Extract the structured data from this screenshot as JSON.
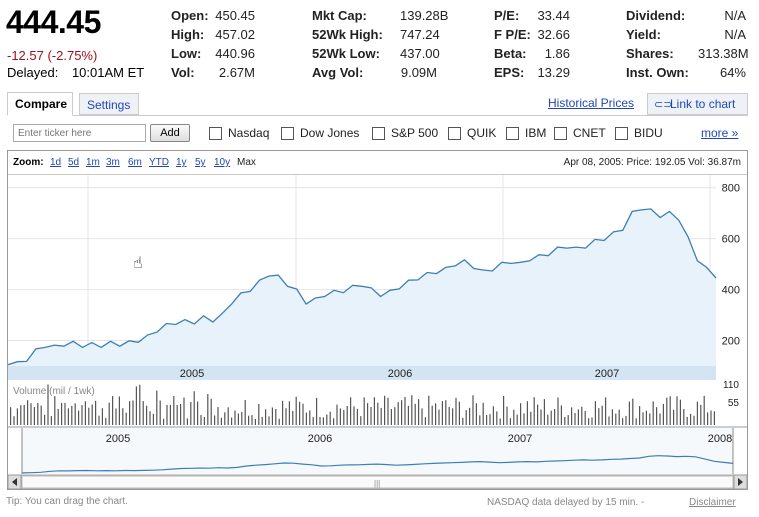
{
  "quote": {
    "price": "444.45",
    "change": "-12.57 (-2.75%)",
    "delayed_label": "Delayed:",
    "delayed_time": "10:01AM ET"
  },
  "stats": {
    "col1": [
      {
        "k": "Open:",
        "v": "450.45"
      },
      {
        "k": "High:",
        "v": "457.02"
      },
      {
        "k": "Low:",
        "v": "440.96"
      },
      {
        "k": "Vol:",
        "v": "2.67M"
      }
    ],
    "col2": [
      {
        "k": "Mkt Cap:",
        "v": "139.28B"
      },
      {
        "k": "52Wk High:",
        "v": "747.24"
      },
      {
        "k": "52Wk Low:",
        "v": "437.00"
      },
      {
        "k": "Avg Vol:",
        "v": "9.09M"
      }
    ],
    "col3": [
      {
        "k": "P/E:",
        "v": "33.44"
      },
      {
        "k": "F P/E:",
        "v": "32.66"
      },
      {
        "k": "Beta:",
        "v": "1.86"
      },
      {
        "k": "EPS:",
        "v": "13.29"
      }
    ],
    "col4": [
      {
        "k": "Dividend:",
        "v": "N/A"
      },
      {
        "k": "Yield:",
        "v": "N/A"
      },
      {
        "k": "Shares:",
        "v": "313.38M"
      },
      {
        "k": "Inst. Own:",
        "v": "64%"
      }
    ]
  },
  "tabs": {
    "compare": "Compare",
    "settings": "Settings",
    "historical": "Historical Prices",
    "link_chart": "Link to chart"
  },
  "compare": {
    "placeholder": "Enter ticker here",
    "add_label": "Add",
    "tickers": [
      "Nasdaq",
      "Dow Jones",
      "S&P 500",
      "QUIK",
      "IBM",
      "CNET",
      "BIDU"
    ],
    "more": "more »"
  },
  "zoom": {
    "label": "Zoom:",
    "options": [
      "1d",
      "5d",
      "1m",
      "3m",
      "6m",
      "YTD",
      "1y",
      "5y",
      "10y"
    ],
    "max": "Max",
    "info": "Apr 08, 2005: Price: 192.05 Vol: 36.87m"
  },
  "chart_data": {
    "type": "area",
    "title": "",
    "y_ticks": [
      "800",
      "600",
      "400",
      "200"
    ],
    "ylim": [
      100,
      850
    ],
    "year_labels": [
      "2005",
      "2006",
      "2007"
    ],
    "volume_label": "Volume (mil / 1wk)",
    "volume_ticks": [
      "110",
      "55"
    ],
    "overview_years": [
      "2005",
      "2006",
      "2007",
      "2008"
    ],
    "series": [
      {
        "values": [
          105,
          110,
          125,
          160,
          180,
          175,
          185,
          190,
          180,
          185,
          180,
          190,
          185,
          192,
          200,
          215,
          240,
          260,
          270,
          275,
          272,
          290,
          280,
          300,
          350,
          380,
          400,
          430,
          460,
          450,
          420,
          395,
          350,
          360,
          380,
          390,
          395,
          410,
          420,
          400,
          380,
          390,
          410,
          430,
          445,
          460,
          470,
          480,
          500,
          510,
          490,
          470,
          480,
          500,
          510,
          500,
          520,
          530,
          540,
          560,
          570,
          560,
          570,
          590,
          600,
          620,
          640,
          700,
          720,
          710,
          690,
          700,
          680,
          600,
          520,
          480,
          445
        ]
      }
    ]
  },
  "footer": {
    "tip": "Tip: You can drag the chart.",
    "delay": "NASDAQ data delayed by 15 min. -",
    "disclaimer": "Disclaimer"
  },
  "colors": {
    "line": "#3d7fb5",
    "fill": "#e8f2fa",
    "year_band": "#d4e4f2",
    "link": "#2046b8",
    "negative": "#a0101c"
  }
}
